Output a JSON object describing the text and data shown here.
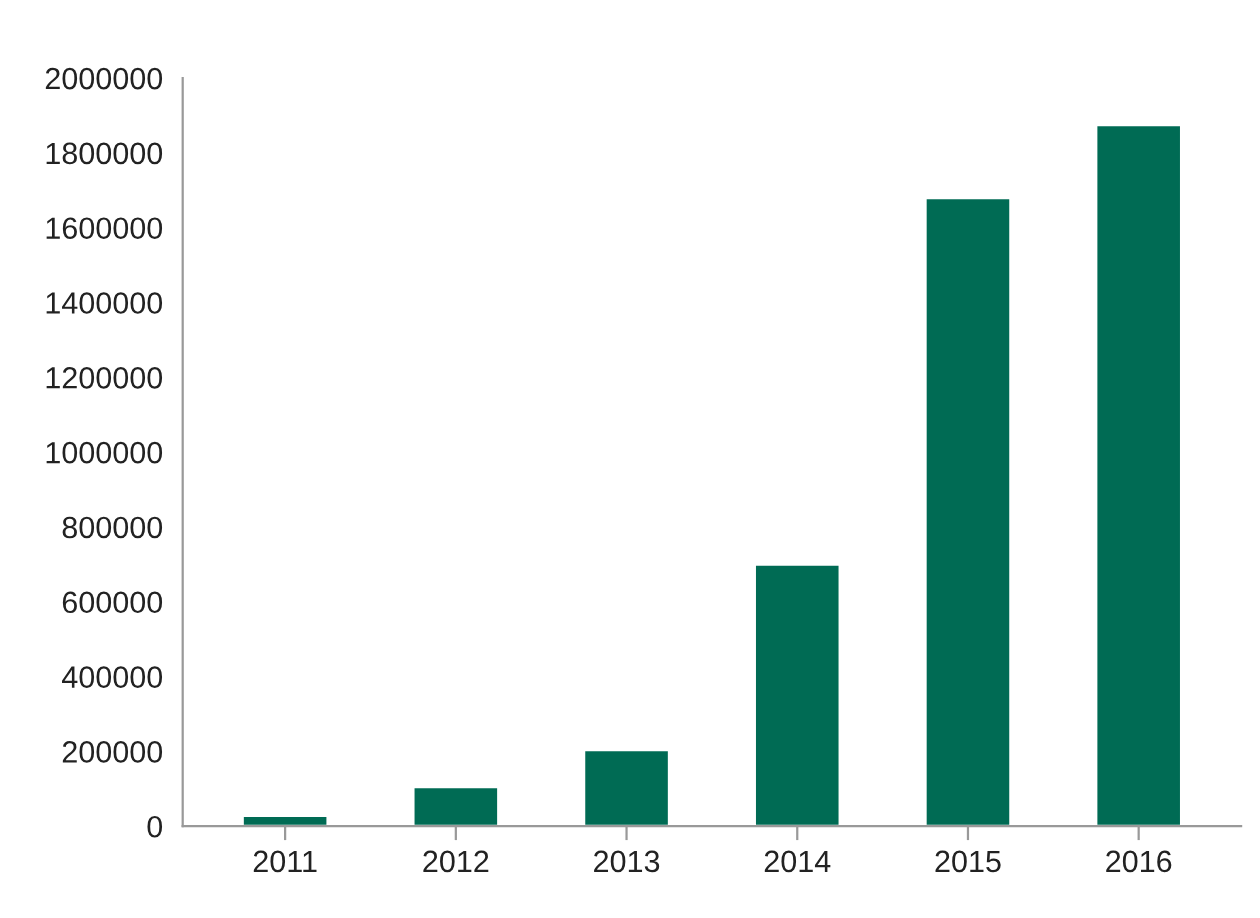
{
  "chart_data": {
    "type": "bar",
    "categories": [
      "2011",
      "2012",
      "2013",
      "2014",
      "2015",
      "2016"
    ],
    "values": [
      28000,
      105000,
      204000,
      700000,
      1680000,
      1875000
    ],
    "color": "#006b54",
    "ylim": [
      0,
      2000000
    ],
    "yticks": [
      0,
      200000,
      400000,
      600000,
      800000,
      1000000,
      1200000,
      1400000,
      1600000,
      1800000,
      2000000
    ],
    "grid": false,
    "legend": false
  }
}
